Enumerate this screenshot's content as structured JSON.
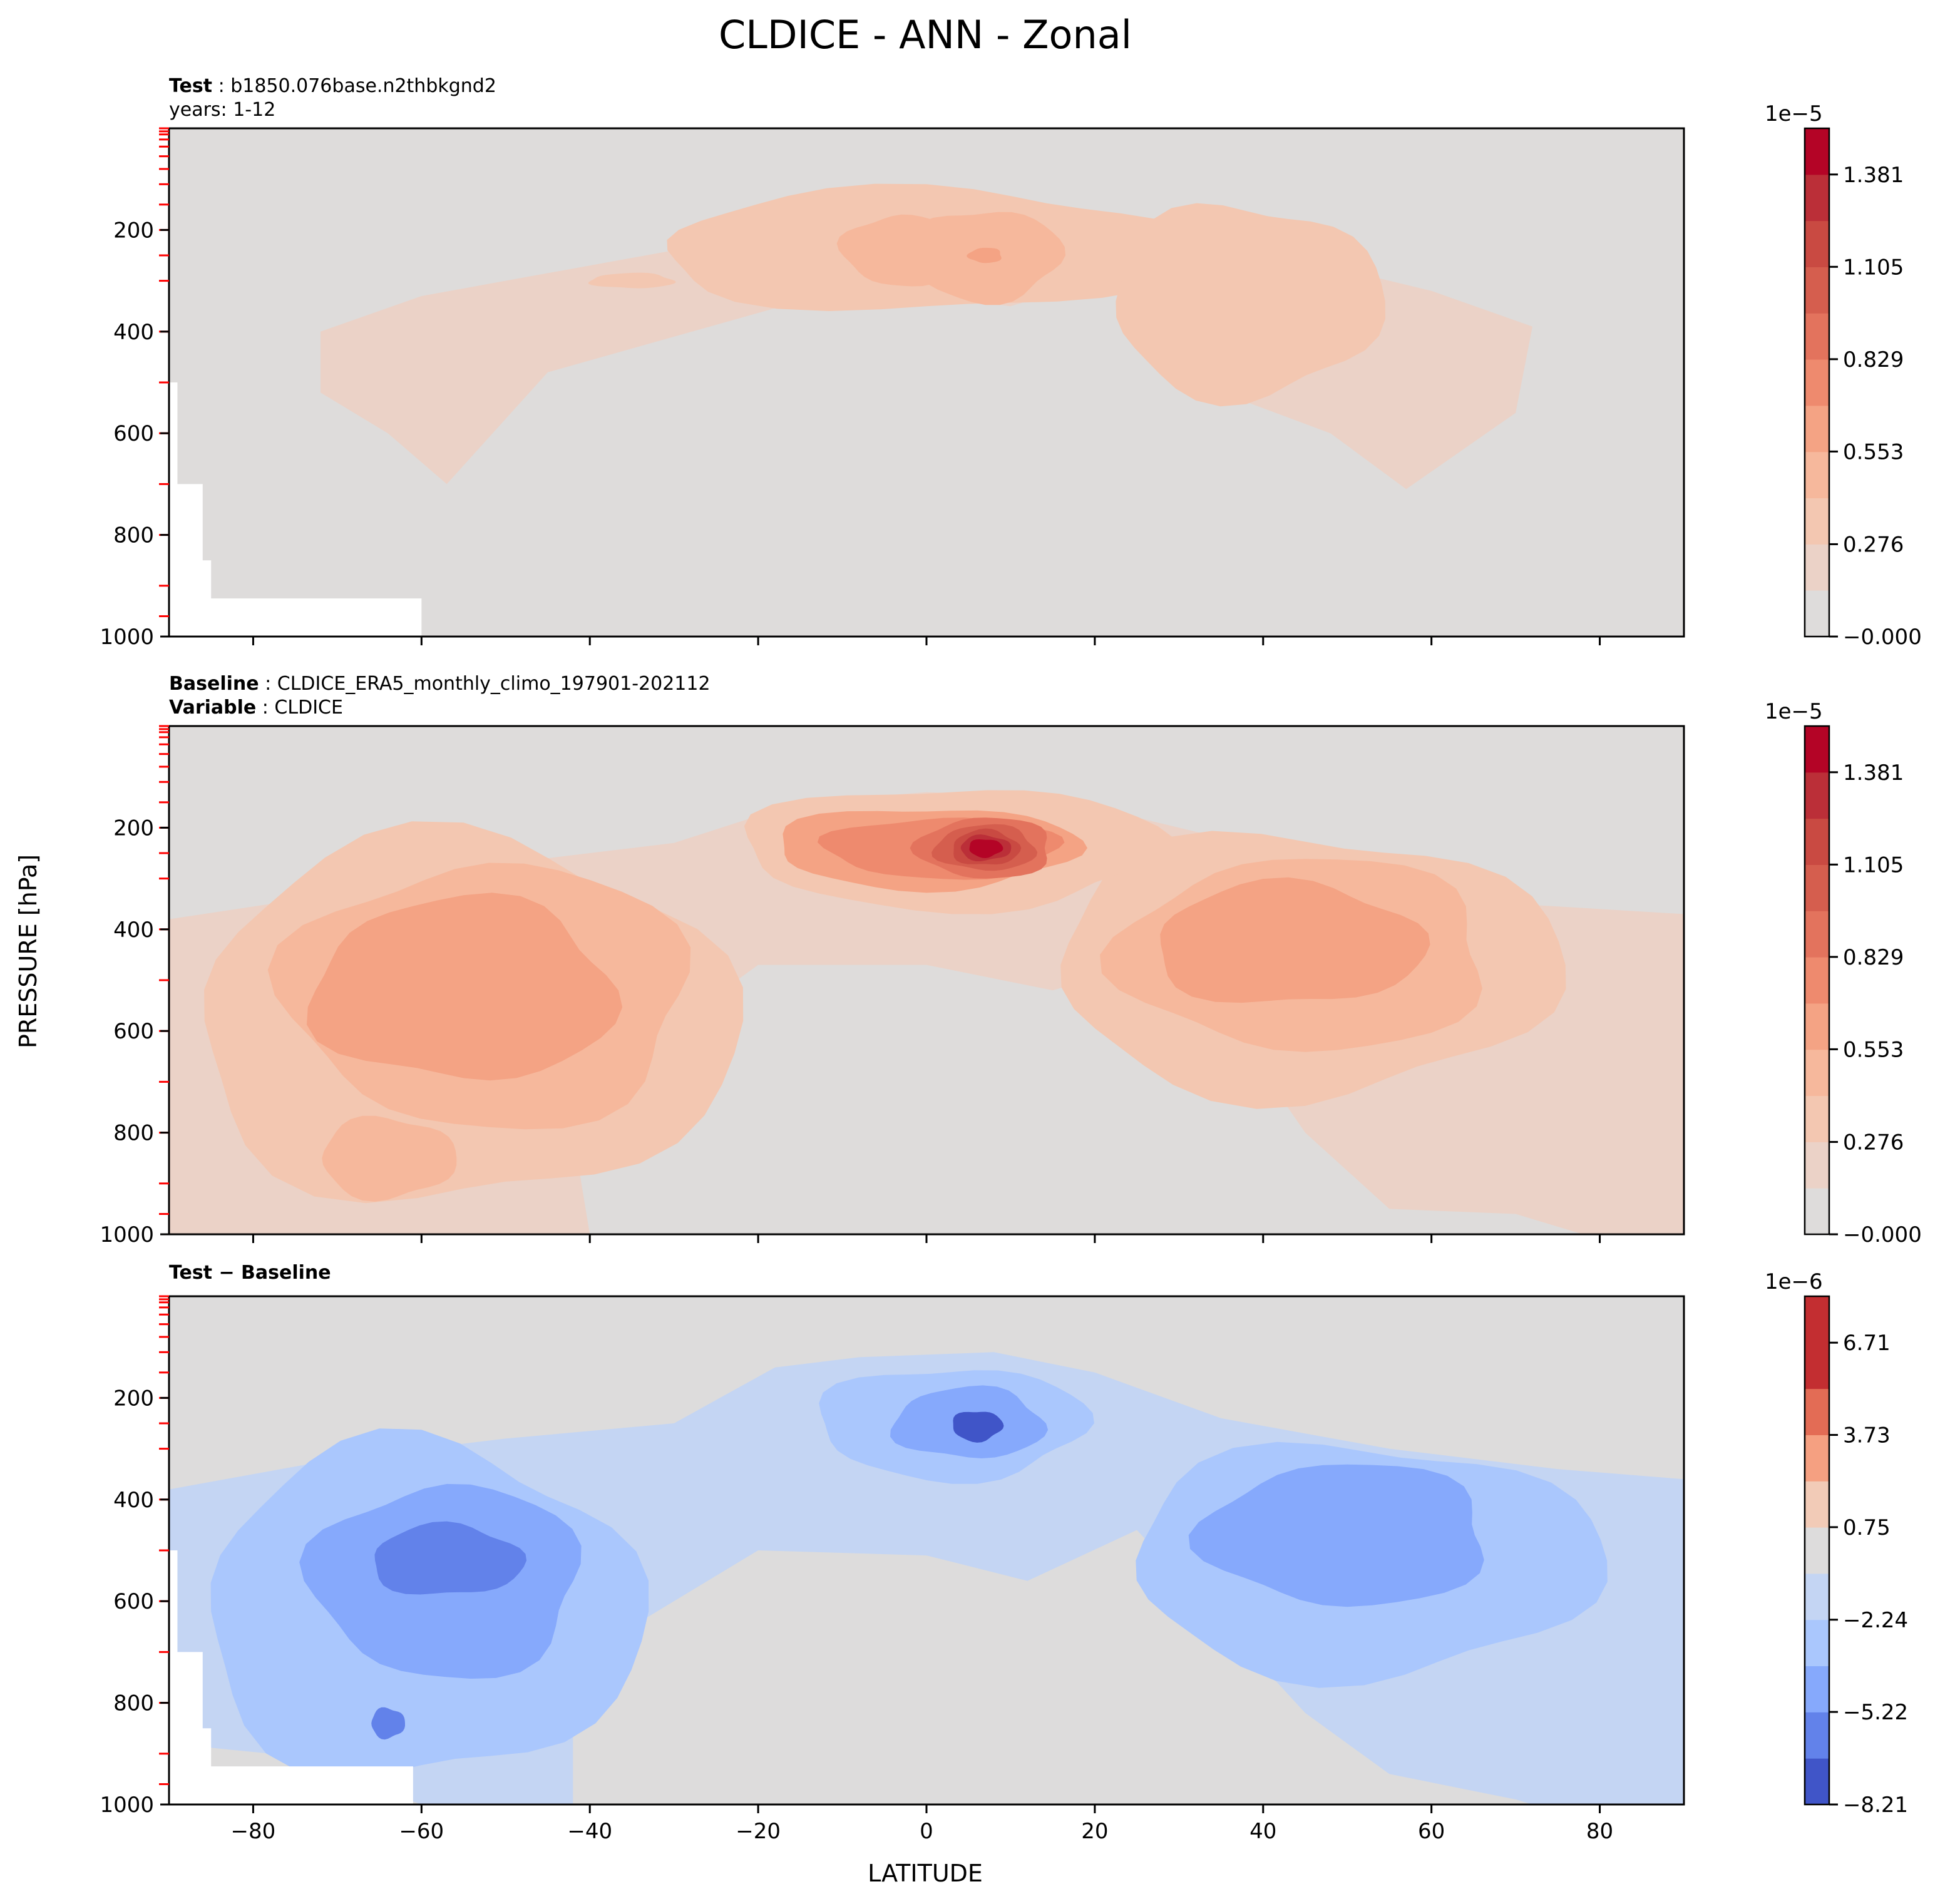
{
  "figure": {
    "title": "CLDICE - ANN - Zonal",
    "ylabel": "PRESSURE [hPa]",
    "xlabel": "LATITUDE",
    "x_ticks": [
      "−80",
      "−60",
      "−40",
      "−20",
      "0",
      "20",
      "40",
      "60",
      "80"
    ],
    "y_ticks": [
      "200",
      "400",
      "600",
      "800",
      "1000"
    ]
  },
  "panels": [
    {
      "id": "test",
      "label_bold": "Test",
      "label_text": ": b1850.076base.n2thbkgnd2",
      "label2": "years: 1-12",
      "label2_bold": "",
      "colorbar_exponent": "1e−5",
      "colorbar_ticks": [
        "1.381",
        "1.105",
        "0.829",
        "0.553",
        "0.276",
        "−0.000"
      ]
    },
    {
      "id": "baseline",
      "label_bold": "Baseline",
      "label_text": ": CLDICE_ERA5_monthly_climo_197901-202112",
      "label2": ": CLDICE",
      "label2_bold": "Variable",
      "colorbar_exponent": "1e−5",
      "colorbar_ticks": [
        "1.381",
        "1.105",
        "0.829",
        "0.553",
        "0.276",
        "−0.000"
      ]
    },
    {
      "id": "diff",
      "label_bold": "Test − Baseline",
      "label_text": "",
      "label2": "",
      "label2_bold": "",
      "colorbar_exponent": "1e−6",
      "colorbar_ticks": [
        "6.71",
        "3.73",
        "0.75",
        "−2.24",
        "−5.22",
        "−8.21"
      ]
    }
  ],
  "chart_data": [
    {
      "type": "heatmap",
      "title": "Test: b1850.076base.n2thbkgnd2, years: 1-12",
      "xlabel": "LATITUDE",
      "ylabel": "PRESSURE [hPa]",
      "xlim": [
        -90,
        90
      ],
      "ylim": [
        1000,
        0
      ],
      "colorbar": {
        "exponent": "1e-5",
        "ticks": [
          1.381,
          1.105,
          0.829,
          0.553,
          0.276,
          -0.0
        ],
        "levels": [
          0.0,
          0.138,
          0.276,
          0.414,
          0.553,
          0.691,
          0.829,
          0.967,
          1.105,
          1.243,
          1.381,
          1.519
        ],
        "colors": [
          "#dedcdb",
          "#ebd2c7",
          "#f3c7b1",
          "#f6b89c",
          "#f4a384",
          "#ee8a6e",
          "#e3735d",
          "#d55e4e",
          "#c94a42",
          "#bb2f38",
          "#b40426"
        ]
      },
      "features": [
        {
          "name": "tropical upper max",
          "lat": 7,
          "p": 250,
          "value": 0.62
        },
        {
          "name": "NH midlat",
          "lat": 38,
          "p": 360,
          "value": 0.5
        },
        {
          "name": "broad envelope",
          "lat_range": [
            -72,
            72
          ],
          "p_range": [
            150,
            700
          ],
          "value": 0.2
        }
      ]
    },
    {
      "type": "heatmap",
      "title": "Baseline: CLDICE_ERA5_monthly_climo_197901-202112, Variable: CLDICE",
      "xlabel": "LATITUDE",
      "ylabel": "PRESSURE [hPa]",
      "xlim": [
        -90,
        90
      ],
      "ylim": [
        1000,
        0
      ],
      "colorbar": {
        "exponent": "1e-5",
        "ticks": [
          1.381,
          1.105,
          0.829,
          0.553,
          0.276,
          -0.0
        ],
        "levels": [
          0.0,
          0.138,
          0.276,
          0.414,
          0.553,
          0.691,
          0.829,
          0.967,
          1.105,
          1.243,
          1.381,
          1.519
        ],
        "colors": [
          "#dedcdb",
          "#ebd2c7",
          "#f3c7b1",
          "#f6b89c",
          "#f4a384",
          "#ee8a6e",
          "#e3735d",
          "#d55e4e",
          "#c94a42",
          "#bb2f38",
          "#b40426"
        ]
      },
      "features": [
        {
          "name": "tropical upper max",
          "lat": 7,
          "p": 240,
          "value": 1.45
        },
        {
          "name": "SH midlat",
          "lat": -55,
          "p": 550,
          "value": 0.78
        },
        {
          "name": "NH midlat",
          "lat": 45,
          "p": 420,
          "value": 0.72
        },
        {
          "name": "SH lower",
          "lat": -60,
          "p": 850,
          "value": 0.5
        }
      ]
    },
    {
      "type": "heatmap",
      "title": "Test − Baseline",
      "xlabel": "LATITUDE",
      "ylabel": "PRESSURE [hPa]",
      "xlim": [
        -90,
        90
      ],
      "ylim": [
        1000,
        0
      ],
      "colorbar": {
        "exponent": "1e-6",
        "ticks": [
          6.71,
          3.73,
          0.75,
          -2.24,
          -5.22,
          -8.21
        ],
        "levels": [
          -8.21,
          -6.72,
          -5.22,
          -3.73,
          -2.24,
          -0.75,
          0.75,
          2.24,
          3.73,
          5.22,
          6.71,
          8.21
        ],
        "colors": [
          "#4055c8",
          "#6282ea",
          "#86a9fc",
          "#aac7fd",
          "#c4d5f3",
          "#dddcdc",
          "#f2cbb7",
          "#f5a081",
          "#e36c55",
          "#c32e31",
          "#c32e31"
        ]
      },
      "features": [
        {
          "name": "tropical upper min",
          "lat": 6,
          "p": 250,
          "value": -8.0
        },
        {
          "name": "SH midlat min",
          "lat": -55,
          "p": 550,
          "value": -6.5
        },
        {
          "name": "NH midlat min",
          "lat": 48,
          "p": 470,
          "value": -5.5
        }
      ]
    }
  ]
}
